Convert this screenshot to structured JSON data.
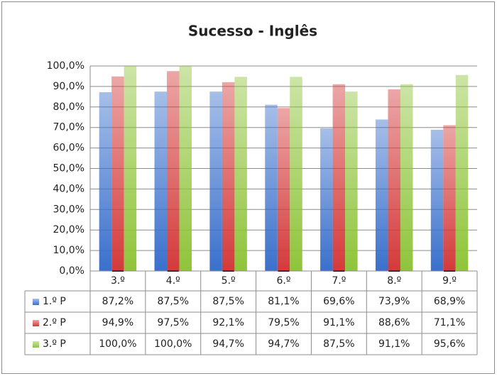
{
  "chart_data": {
    "type": "bar",
    "title": "Sucesso - Inglês",
    "categories": [
      "3.º",
      "4.º",
      "5.º",
      "6.º",
      "7.º",
      "8.º",
      "9.º"
    ],
    "series": [
      {
        "name": "1.º P",
        "color": "#3a70cc",
        "values": [
          87.2,
          87.5,
          87.5,
          81.1,
          69.6,
          73.9,
          68.9
        ],
        "value_labels": [
          "87,2%",
          "87,5%",
          "87,5%",
          "81,1%",
          "69,6%",
          "73,9%",
          "68,9%"
        ]
      },
      {
        "name": "2.º P",
        "color": "#d43a3a",
        "values": [
          94.9,
          97.5,
          92.1,
          79.5,
          91.1,
          88.6,
          71.1
        ],
        "value_labels": [
          "94,9%",
          "97,5%",
          "92,1%",
          "79,5%",
          "91,1%",
          "88,6%",
          "71,1%"
        ]
      },
      {
        "name": "3.º P",
        "color": "#8fc43a",
        "values": [
          100,
          100,
          94.7,
          94.7,
          87.5,
          91.1,
          95.6
        ],
        "value_labels": [
          "100,0%",
          "100,0%",
          "94,7%",
          "94,7%",
          "87,5%",
          "91,1%",
          "95,6%"
        ]
      }
    ],
    "ylim": [
      0,
      100
    ],
    "yticks": [
      {
        "value": 0,
        "label": "0,0%"
      },
      {
        "value": 10,
        "label": "10,0%"
      },
      {
        "value": 20,
        "label": "20,0%"
      },
      {
        "value": 30,
        "label": "30,0%"
      },
      {
        "value": 40,
        "label": "40,0%"
      },
      {
        "value": 50,
        "label": "50,0%"
      },
      {
        "value": 60,
        "label": "60,0%"
      },
      {
        "value": 70,
        "label": "70,0%"
      },
      {
        "value": 80,
        "label": "80,0%"
      },
      {
        "value": 90,
        "label": "90,0%"
      },
      {
        "value": 100,
        "label": "100,0%"
      }
    ],
    "grid": true
  }
}
